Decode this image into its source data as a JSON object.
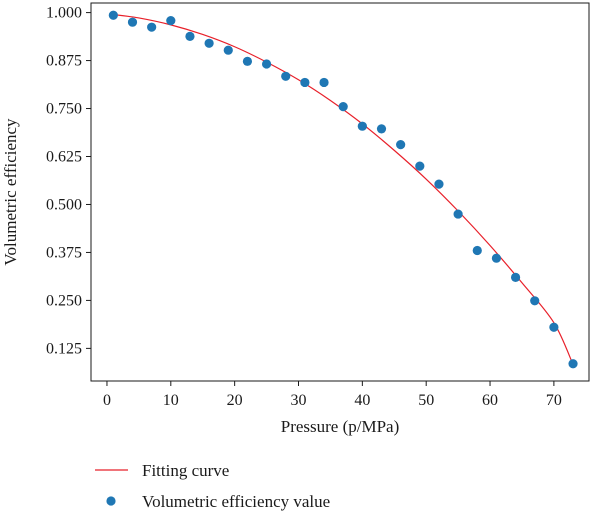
{
  "chart_data": {
    "type": "scatter",
    "title": "",
    "xlabel": "Pressure (p/MPa)",
    "ylabel": "Volumetric efficiency",
    "xlim": [
      -2.5,
      75.5
    ],
    "ylim": [
      0.04,
      1.025
    ],
    "xticks": [
      0,
      10,
      20,
      30,
      40,
      50,
      60,
      70
    ],
    "yticks": [
      0.125,
      0.25,
      0.375,
      0.5,
      0.625,
      0.75,
      0.875,
      1.0
    ],
    "ytick_labels": [
      "0.125",
      "0.250",
      "0.375",
      "0.500",
      "0.625",
      "0.750",
      "0.875",
      "1.000"
    ],
    "grid": false,
    "legend_position": "bottom-left, below plot",
    "series": [
      {
        "name": "Fitting curve",
        "kind": "line",
        "color": "#e8202a",
        "x": [
          1,
          5,
          10,
          15,
          20,
          25,
          30,
          35,
          40,
          45,
          50,
          55,
          60,
          65,
          70,
          73
        ],
        "y": [
          0.995,
          0.986,
          0.968,
          0.943,
          0.911,
          0.871,
          0.825,
          0.771,
          0.71,
          0.641,
          0.566,
          0.483,
          0.393,
          0.296,
          0.192,
          0.083
        ]
      },
      {
        "name": "Volumetric efficiency value",
        "kind": "scatter",
        "color": "#1f77b4",
        "x": [
          1,
          4,
          7,
          10,
          13,
          16,
          19,
          22,
          25,
          28,
          31,
          34,
          37,
          40,
          43,
          46,
          49,
          52,
          55,
          58,
          61,
          64,
          67,
          70,
          73
        ],
        "y": [
          0.993,
          0.975,
          0.962,
          0.979,
          0.938,
          0.92,
          0.902,
          0.873,
          0.866,
          0.834,
          0.818,
          0.818,
          0.755,
          0.704,
          0.697,
          0.656,
          0.6,
          0.553,
          0.475,
          0.38,
          0.36,
          0.31,
          0.249,
          0.18,
          0.085
        ]
      }
    ]
  }
}
